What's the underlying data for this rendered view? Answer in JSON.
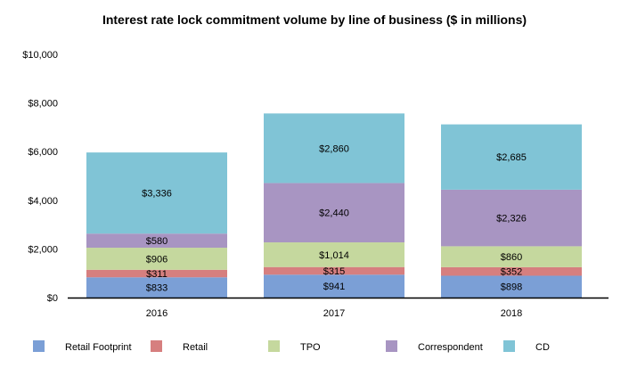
{
  "chart_data": {
    "type": "bar",
    "stacked": true,
    "title": "Interest rate lock commitment volume by line of business ($ in millions)",
    "xlabel": "",
    "ylabel": "",
    "categories": [
      "2016",
      "2017",
      "2018"
    ],
    "ylim": [
      0,
      10000
    ],
    "yticks": [
      0,
      2000,
      4000,
      6000,
      8000,
      10000
    ],
    "ytick_labels": [
      "$0",
      "$2,000",
      "$4,000",
      "$6,000",
      "$8,000",
      "$10,000"
    ],
    "grid": false,
    "legend_position": "bottom",
    "series": [
      {
        "name": "Retail Footprint",
        "color": "#7b9fd6",
        "values": [
          833,
          941,
          898
        ],
        "labels": [
          "$833",
          "$941",
          "$898"
        ]
      },
      {
        "name": "Retail",
        "color": "#d67f7f",
        "values": [
          311,
          315,
          352
        ],
        "labels": [
          "$311",
          "$315",
          "$352"
        ]
      },
      {
        "name": "TPO",
        "color": "#c5d89e",
        "values": [
          906,
          1014,
          860
        ],
        "labels": [
          "$906",
          "$1,014",
          "$860"
        ]
      },
      {
        "name": "Correspondent",
        "color": "#a895c2",
        "values": [
          580,
          2440,
          2326
        ],
        "labels": [
          "$580",
          "$2,440",
          "$2,326"
        ]
      },
      {
        "name": "CD",
        "color": "#80c4d6",
        "values": [
          3336,
          2860,
          2685
        ],
        "labels": [
          "$3,336",
          "$2,860",
          "$2,685"
        ]
      }
    ]
  }
}
